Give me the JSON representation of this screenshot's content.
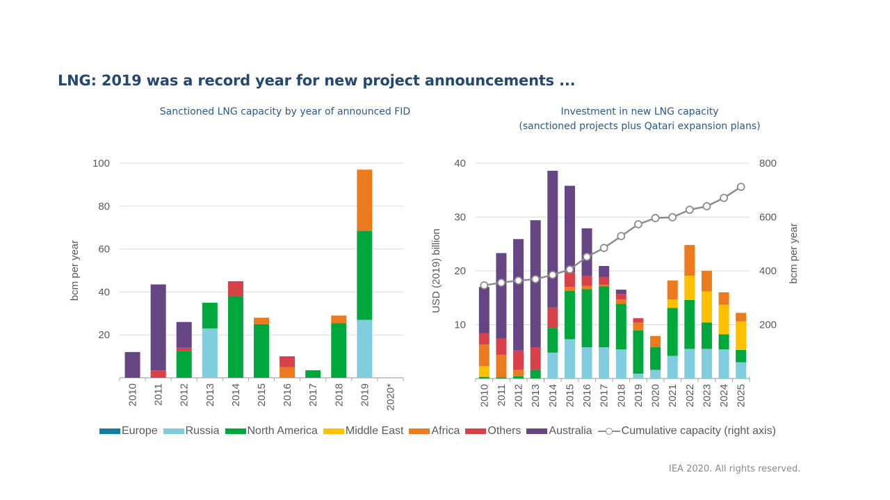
{
  "page": {
    "title": "LNG: 2019 was a record year for new project announcements ...",
    "copyright": "IEA 2020. All rights reserved."
  },
  "legend": [
    {
      "name": "Europe",
      "color": "#0f7fa0"
    },
    {
      "name": "Russia",
      "color": "#80cde0"
    },
    {
      "name": "North America",
      "color": "#00a73c"
    },
    {
      "name": "Middle East",
      "color": "#ffc000"
    },
    {
      "name": "Africa",
      "color": "#eb7b1e"
    },
    {
      "name": "Others",
      "color": "#d8404a"
    },
    {
      "name": "Australia",
      "color": "#654583"
    },
    {
      "name": "Cumulative capacity (right axis)",
      "color": "#8c8c8c",
      "kind": "line-marker"
    }
  ],
  "chart_data": [
    {
      "type": "bar",
      "stacked": true,
      "title": "Sanctioned LNG capacity by year of announced FID",
      "xlabel": "",
      "ylabel": "bcm per year",
      "ylim": [
        0,
        100
      ],
      "yticks": [
        20,
        40,
        60,
        80,
        100
      ],
      "grid": true,
      "categories": [
        "2010",
        "2011",
        "2012",
        "2013",
        "2014",
        "2015",
        "2016",
        "2017",
        "2018",
        "2019",
        "2020*"
      ],
      "series": [
        {
          "name": "Europe",
          "color": "#0f7fa0",
          "values": [
            0,
            0,
            0,
            0,
            0,
            0,
            0,
            0,
            0,
            0,
            0
          ]
        },
        {
          "name": "Russia",
          "color": "#80cde0",
          "values": [
            0,
            0,
            0,
            23,
            0,
            0,
            0,
            0,
            0,
            27,
            0
          ]
        },
        {
          "name": "North America",
          "color": "#00a73c",
          "values": [
            0,
            0,
            12.5,
            12,
            38,
            25,
            0,
            3.5,
            25.5,
            41.5,
            0
          ]
        },
        {
          "name": "Middle East",
          "color": "#ffc000",
          "values": [
            0,
            0,
            0,
            0,
            0,
            0,
            0,
            0,
            0,
            0,
            0
          ]
        },
        {
          "name": "Africa",
          "color": "#eb7b1e",
          "values": [
            0,
            0,
            0,
            0,
            0,
            3,
            5,
            0,
            3.5,
            28.5,
            0
          ]
        },
        {
          "name": "Others",
          "color": "#d8404a",
          "values": [
            0,
            3.5,
            1.5,
            0,
            7,
            0,
            5,
            0,
            0,
            0,
            0
          ]
        },
        {
          "name": "Australia",
          "color": "#654583",
          "values": [
            12,
            40,
            12,
            0,
            0,
            0,
            0,
            0,
            0,
            0,
            0
          ]
        }
      ]
    },
    {
      "type": "bar",
      "stacked": true,
      "title": "Investment in new LNG capacity\n(sanctioned projects plus Qatari expansion plans)",
      "title_lines": [
        "Investment in new LNG capacity",
        "(sanctioned projects plus Qatari expansion plans)"
      ],
      "xlabel": "",
      "ylabel": "USD (2019) billion",
      "ylim": [
        0,
        40
      ],
      "yticks": [
        10,
        20,
        30,
        40
      ],
      "y2label": "bcm per year",
      "y2lim": [
        0,
        800
      ],
      "y2ticks": [
        200,
        400,
        600,
        800
      ],
      "grid": true,
      "categories": [
        "2010",
        "2011",
        "2012",
        "2013",
        "2014",
        "2015",
        "2016",
        "2017",
        "2018",
        "2019",
        "2020",
        "2021",
        "2022",
        "2023",
        "2024",
        "2025"
      ],
      "series": [
        {
          "name": "Europe",
          "color": "#0f7fa0",
          "values": [
            0,
            0,
            0,
            0,
            0,
            0,
            0,
            0,
            0,
            0,
            0,
            0,
            0,
            0,
            0,
            0
          ]
        },
        {
          "name": "Russia",
          "color": "#80cde0",
          "values": [
            0,
            0,
            0,
            0,
            4.8,
            7.3,
            5.8,
            5.8,
            5.4,
            0.9,
            1.6,
            4.2,
            5.5,
            5.5,
            5.4,
            3.0
          ]
        },
        {
          "name": "North America",
          "color": "#00a73c",
          "values": [
            0.3,
            0.2,
            0.4,
            1.6,
            4.6,
            9.0,
            10.8,
            11.3,
            8.5,
            8.0,
            4.2,
            8.9,
            9.1,
            4.9,
            2.8,
            2.3
          ]
        },
        {
          "name": "Middle East",
          "color": "#ffc000",
          "values": [
            2.0,
            0,
            0,
            0,
            0,
            0,
            0,
            0,
            0,
            0,
            0,
            1.6,
            4.5,
            5.8,
            5.5,
            5.3
          ]
        },
        {
          "name": "Africa",
          "color": "#eb7b1e",
          "values": [
            4.0,
            4.2,
            1.2,
            0,
            0,
            0.7,
            0.6,
            0.3,
            0.8,
            1.5,
            2.1,
            3.5,
            5.7,
            3.8,
            2.3,
            1.6
          ]
        },
        {
          "name": "Others",
          "color": "#d8404a",
          "values": [
            2.1,
            3.0,
            3.6,
            4.2,
            3.8,
            2.7,
            1.9,
            1.5,
            1.0,
            0.8,
            0,
            0,
            0,
            0,
            0,
            0
          ]
        },
        {
          "name": "Australia",
          "color": "#654583",
          "values": [
            8.6,
            15.9,
            20.7,
            23.6,
            25.4,
            16.1,
            8.8,
            2.0,
            0.8,
            0,
            0,
            0,
            0,
            0,
            0,
            0
          ]
        }
      ],
      "line": {
        "name": "Cumulative capacity (right axis)",
        "axis": "right",
        "color": "#8c8c8c",
        "values": [
          346,
          356,
          364,
          369,
          385,
          405,
          452,
          485,
          529,
          573,
          596,
          599,
          627,
          640,
          671,
          712
        ]
      }
    }
  ]
}
